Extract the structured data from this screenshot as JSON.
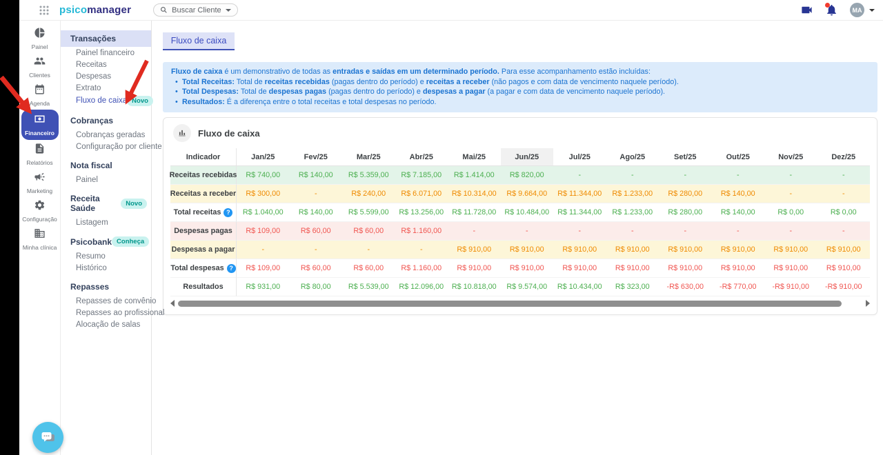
{
  "colors": {
    "accent": "#3f51b5",
    "green": "#4caf50",
    "orange": "#ef8a00",
    "red": "#f05550",
    "info_blue": "#1a73d1",
    "badge_teal": "#00968b",
    "arrow_red": "#e02b20"
  },
  "topbar": {
    "logo": {
      "part1": "psico",
      "part2": "manager"
    },
    "search": {
      "placeholder": "Buscar Cliente"
    },
    "user": {
      "initials": "MA"
    }
  },
  "icon_nav": {
    "items": [
      {
        "label": "Painel",
        "icon": "pie-chart-icon",
        "active": false
      },
      {
        "label": "Clientes",
        "icon": "people-icon",
        "active": false
      },
      {
        "label": "Agenda",
        "icon": "calendar-icon",
        "active": false
      },
      {
        "label": "Financeiro",
        "icon": "money-icon",
        "active": true
      },
      {
        "label": "Relatórios",
        "icon": "report-icon",
        "active": false
      },
      {
        "label": "Marketing",
        "icon": "megaphone-icon",
        "active": false
      },
      {
        "label": "Configuração",
        "icon": "gear-icon",
        "active": false
      },
      {
        "label": "Minha clínica",
        "icon": "building-icon",
        "active": false
      }
    ]
  },
  "sidebar": {
    "sections": [
      {
        "title": "Transações",
        "badge": "",
        "highlighted": true,
        "items": [
          {
            "label": "Painel financeiro",
            "badge": "",
            "active": false
          },
          {
            "label": "Receitas",
            "badge": "",
            "active": false
          },
          {
            "label": "Despesas",
            "badge": "",
            "active": false
          },
          {
            "label": "Extrato",
            "badge": "",
            "active": false
          },
          {
            "label": "Fluxo de caixa",
            "badge": "Novo",
            "active": true
          }
        ]
      },
      {
        "title": "Cobranças",
        "badge": "",
        "highlighted": false,
        "items": [
          {
            "label": "Cobranças geradas",
            "badge": "",
            "active": false
          },
          {
            "label": "Configuração por cliente",
            "badge": "",
            "active": false
          }
        ]
      },
      {
        "title": "Nota fiscal",
        "badge": "",
        "highlighted": false,
        "items": [
          {
            "label": "Painel",
            "badge": "",
            "active": false
          }
        ]
      },
      {
        "title": "Receita Saúde",
        "badge": "Novo",
        "highlighted": false,
        "items": [
          {
            "label": "Listagem",
            "badge": "",
            "active": false
          }
        ]
      },
      {
        "title": "Psicobank",
        "badge": "Conheça",
        "highlighted": false,
        "items": [
          {
            "label": "Resumo",
            "badge": "",
            "active": false
          },
          {
            "label": "Histórico",
            "badge": "",
            "active": false
          }
        ]
      },
      {
        "title": "Repasses",
        "badge": "",
        "highlighted": false,
        "items": [
          {
            "label": "Repasses de convênio",
            "badge": "",
            "active": false
          },
          {
            "label": "Repasses ao profissional",
            "badge": "",
            "active": false
          },
          {
            "label": "Alocação de salas",
            "badge": "",
            "active": false
          }
        ]
      }
    ]
  },
  "page": {
    "tab_label": "Fluxo de caixa"
  },
  "info_box": {
    "lines": [
      {
        "bullet": false,
        "segments": [
          {
            "t": "Fluxo de caixa",
            "b": true
          },
          {
            "t": " é um demonstrativo de todas as ",
            "b": false
          },
          {
            "t": "entradas e saídas em um determinado período.",
            "b": true
          },
          {
            "t": " Para esse acompanhamento estão incluídas:",
            "b": false
          }
        ]
      },
      {
        "bullet": true,
        "segments": [
          {
            "t": "Total Receitas:",
            "b": true
          },
          {
            "t": " Total de ",
            "b": false
          },
          {
            "t": "receitas recebidas",
            "b": true
          },
          {
            "t": " (pagas dentro do período) e ",
            "b": false
          },
          {
            "t": "receitas a receber",
            "b": true
          },
          {
            "t": " (não pagos e com data de vencimento naquele período).",
            "b": false
          }
        ]
      },
      {
        "bullet": true,
        "segments": [
          {
            "t": "Total Despesas:",
            "b": true
          },
          {
            "t": " Total de ",
            "b": false
          },
          {
            "t": "despesas pagas",
            "b": true
          },
          {
            "t": " (pagas dentro do período) e ",
            "b": false
          },
          {
            "t": "despesas a pagar",
            "b": true
          },
          {
            "t": " (a pagar e com data de vencimento naquele período).",
            "b": false
          }
        ]
      },
      {
        "bullet": true,
        "segments": [
          {
            "t": "Resultados:",
            "b": true
          },
          {
            "t": " É a diferença entre o total receitas e total despesas no período.",
            "b": false
          }
        ]
      }
    ]
  },
  "card": {
    "title": "Fluxo de caixa"
  },
  "table": {
    "columns": [
      "Indicador",
      "Jan/25",
      "Fev/25",
      "Mar/25",
      "Abr/25",
      "Mai/25",
      "Jun/25",
      "Jul/25",
      "Ago/25",
      "Set/25",
      "Out/25",
      "Nov/25",
      "Dez/25"
    ],
    "highlighted_column": "Jun/25",
    "rows": [
      {
        "label": "Receitas recebidas",
        "bg": "green",
        "text": "green",
        "label_style": "dark",
        "help": false,
        "values": [
          "R$ 740,00",
          "R$ 140,00",
          "R$ 5.359,00",
          "R$ 7.185,00",
          "R$ 1.414,00",
          "R$ 820,00",
          "-",
          "-",
          "-",
          "-",
          "-",
          "-"
        ]
      },
      {
        "label": "Receitas a receber",
        "bg": "yellow",
        "text": "orange",
        "label_style": "dark",
        "help": false,
        "values": [
          "R$ 300,00",
          "-",
          "R$ 240,00",
          "R$ 6.071,00",
          "R$ 10.314,00",
          "R$ 9.664,00",
          "R$ 11.344,00",
          "R$ 1.233,00",
          "R$ 280,00",
          "R$ 140,00",
          "-",
          "-"
        ]
      },
      {
        "label": "Total receitas",
        "bg": "white",
        "text": "green",
        "label_style": "green",
        "help": true,
        "values": [
          "R$ 1.040,00",
          "R$ 140,00",
          "R$ 5.599,00",
          "R$ 13.256,00",
          "R$ 11.728,00",
          "R$ 10.484,00",
          "R$ 11.344,00",
          "R$ 1.233,00",
          "R$ 280,00",
          "R$ 140,00",
          "R$ 0,00",
          "R$ 0,00"
        ]
      },
      {
        "label": "Despesas pagas",
        "bg": "pink",
        "text": "red",
        "label_style": "dark",
        "help": false,
        "values": [
          "R$ 109,00",
          "R$ 60,00",
          "R$ 60,00",
          "R$ 1.160,00",
          "-",
          "-",
          "-",
          "-",
          "-",
          "-",
          "-",
          "-"
        ]
      },
      {
        "label": "Despesas a pagar",
        "bg": "yellow",
        "text": "orange",
        "label_style": "dark",
        "help": false,
        "values": [
          "-",
          "-",
          "-",
          "-",
          "R$ 910,00",
          "R$ 910,00",
          "R$ 910,00",
          "R$ 910,00",
          "R$ 910,00",
          "R$ 910,00",
          "R$ 910,00",
          "R$ 910,00"
        ]
      },
      {
        "label": "Total despesas",
        "bg": "white",
        "text": "red",
        "label_style": "red",
        "help": true,
        "values": [
          "R$ 109,00",
          "R$ 60,00",
          "R$ 60,00",
          "R$ 1.160,00",
          "R$ 910,00",
          "R$ 910,00",
          "R$ 910,00",
          "R$ 910,00",
          "R$ 910,00",
          "R$ 910,00",
          "R$ 910,00",
          "R$ 910,00"
        ]
      },
      {
        "label": "Resultados",
        "bg": "white",
        "text": "auto",
        "label_style": "dark",
        "help": false,
        "values": [
          "R$ 931,00",
          "R$ 80,00",
          "R$ 5.539,00",
          "R$ 12.096,00",
          "R$ 10.818,00",
          "R$ 9.574,00",
          "R$ 10.434,00",
          "R$ 323,00",
          "-R$ 630,00",
          "-R$ 770,00",
          "-R$ 910,00",
          "-R$ 910,00"
        ]
      }
    ]
  }
}
